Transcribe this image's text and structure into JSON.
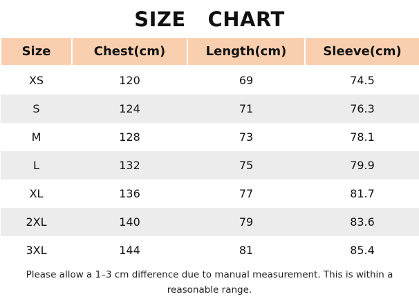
{
  "header": {
    "title": "SIZE   CHART"
  },
  "table": {
    "columns": [
      "Size",
      "Chest(cm)",
      "Length(cm)",
      "Sleeve(cm)"
    ],
    "rows": [
      [
        "XS",
        120,
        69,
        74.5
      ],
      [
        "S",
        124,
        71,
        76.3
      ],
      [
        "M",
        128,
        73,
        78.1
      ],
      [
        "L",
        132,
        75,
        79.9
      ],
      [
        "XL",
        136,
        77,
        81.7
      ],
      [
        "2XL",
        140,
        79,
        83.6
      ],
      [
        "3XL",
        144,
        81,
        85.4
      ]
    ]
  },
  "footer": {
    "note": "Please allow a 1–3 cm difference due to manual measurement. This is within a reasonable range."
  }
}
